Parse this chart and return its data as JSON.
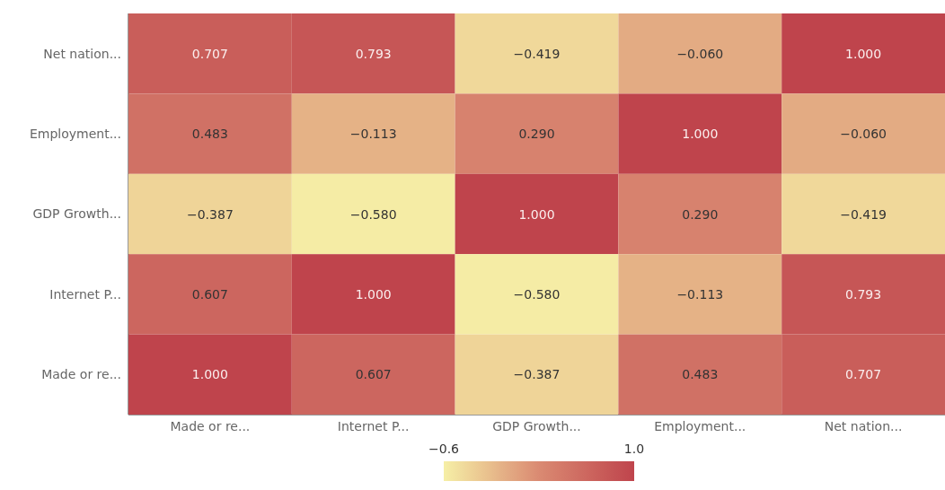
{
  "chart_data": {
    "type": "heatmap",
    "categories": [
      "Made or re...",
      "Internet P...",
      "GDP Growth...",
      "Employment...",
      "Net nation..."
    ],
    "y_categories": [
      "Net nation...",
      "Employment...",
      "GDP Growth...",
      "Internet P...",
      "Made or re..."
    ],
    "cells": [
      [
        0.707,
        0.793,
        -0.419,
        -0.06,
        1.0
      ],
      [
        0.483,
        -0.113,
        0.29,
        1.0,
        -0.06
      ],
      [
        -0.387,
        -0.58,
        1.0,
        0.29,
        -0.419
      ],
      [
        0.607,
        1.0,
        -0.58,
        -0.113,
        0.793
      ],
      [
        1.0,
        0.607,
        -0.387,
        0.483,
        0.707
      ]
    ],
    "cell_labels": [
      [
        "0.707",
        "0.793",
        "−0.419",
        "−0.060",
        "1.000"
      ],
      [
        "0.483",
        "−0.113",
        "0.290",
        "1.000",
        "−0.060"
      ],
      [
        "−0.387",
        "−0.580",
        "1.000",
        "0.290",
        "−0.419"
      ],
      [
        "0.607",
        "1.000",
        "−0.580",
        "−0.113",
        "0.793"
      ],
      [
        "1.000",
        "0.607",
        "−0.387",
        "0.483",
        "0.707"
      ]
    ],
    "clim": [
      -0.6,
      1.0
    ],
    "cticks": [
      {
        "value": -0.6,
        "label": "−0.6"
      },
      {
        "value": 1.0,
        "label": "1.0"
      }
    ]
  }
}
